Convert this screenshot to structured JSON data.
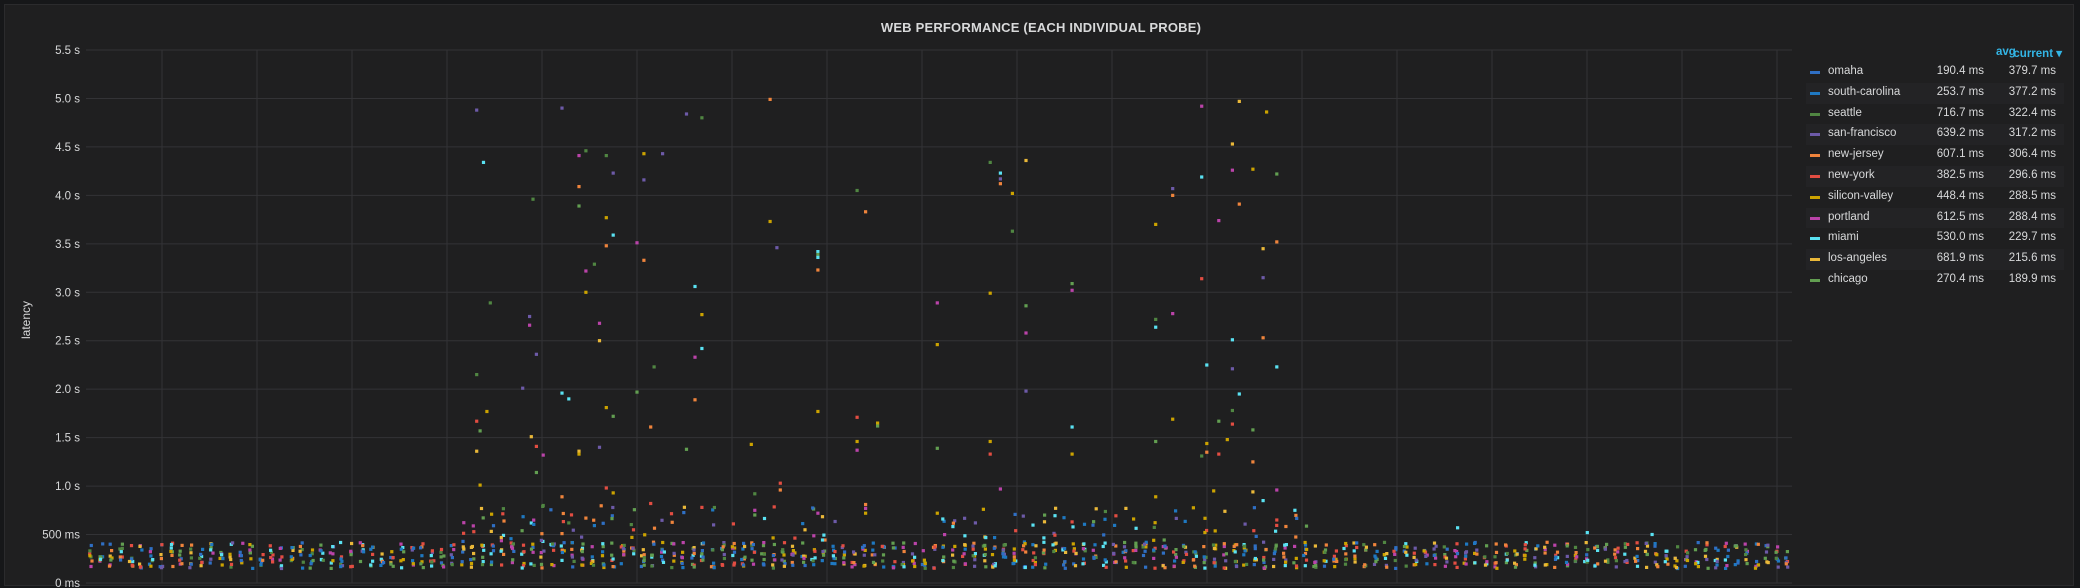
{
  "panel": {
    "title": "WEB PERFORMANCE (EACH INDIVIDUAL PROBE)"
  },
  "legend": {
    "avg_header": "avg",
    "current_header": "current ▾",
    "items": [
      {
        "name": "omaha",
        "avg": "190.4 ms",
        "current": "379.7 ms",
        "color": "#2f6fc4"
      },
      {
        "name": "south-carolina",
        "avg": "253.7 ms",
        "current": "377.2 ms",
        "color": "#1f78c1"
      },
      {
        "name": "seattle",
        "avg": "716.7 ms",
        "current": "322.4 ms",
        "color": "#508642"
      },
      {
        "name": "san-francisco",
        "avg": "639.2 ms",
        "current": "317.2 ms",
        "color": "#6d5aa8"
      },
      {
        "name": "new-jersey",
        "avg": "607.1 ms",
        "current": "306.4 ms",
        "color": "#ef843c"
      },
      {
        "name": "new-york",
        "avg": "382.5 ms",
        "current": "296.6 ms",
        "color": "#e24d42"
      },
      {
        "name": "silicon-valley",
        "avg": "448.4 ms",
        "current": "288.5 ms",
        "color": "#cca300"
      },
      {
        "name": "portland",
        "avg": "612.5 ms",
        "current": "288.4 ms",
        "color": "#ba43a9"
      },
      {
        "name": "miami",
        "avg": "530.0 ms",
        "current": "229.7 ms",
        "color": "#5ae2f2"
      },
      {
        "name": "los-angeles",
        "avg": "681.9 ms",
        "current": "215.6 ms",
        "color": "#eab839"
      },
      {
        "name": "chicago",
        "avg": "270.4 ms",
        "current": "189.9 ms",
        "color": "#629e51"
      }
    ]
  },
  "chart_data": {
    "type": "scatter",
    "title": "WEB PERFORMANCE (EACH INDIVIDUAL PROBE)",
    "ylabel": "latency",
    "xlabel": "",
    "yunit": "s",
    "ylim": [
      0,
      5.5
    ],
    "yticks": [
      "0 ms",
      "500 ms",
      "1.0 s",
      "1.5 s",
      "2.0 s",
      "2.5 s",
      "3.0 s",
      "3.5 s",
      "4.0 s",
      "4.5 s",
      "5.0 s",
      "5.5 s"
    ],
    "xlim": [
      0,
      1
    ],
    "grid": true,
    "legend_position": "right",
    "baseline_band_s": [
      0.15,
      0.42
    ],
    "spikes": [
      {
        "series": "san-francisco",
        "x": 0.229,
        "y": 4.88
      },
      {
        "series": "miami",
        "x": 0.233,
        "y": 4.34
      },
      {
        "series": "seattle",
        "x": 0.229,
        "y": 2.15
      },
      {
        "series": "new-york",
        "x": 0.229,
        "y": 1.67
      },
      {
        "series": "silicon-valley",
        "x": 0.231,
        "y": 1.01
      },
      {
        "series": "los-angeles",
        "x": 0.229,
        "y": 1.36
      },
      {
        "series": "chicago",
        "x": 0.231,
        "y": 1.57
      },
      {
        "series": "seattle",
        "x": 0.237,
        "y": 2.89
      },
      {
        "series": "silicon-valley",
        "x": 0.235,
        "y": 1.77
      },
      {
        "series": "san-francisco",
        "x": 0.256,
        "y": 2.01
      },
      {
        "series": "new-jersey",
        "x": 0.245,
        "y": 0.64
      },
      {
        "series": "seattle",
        "x": 0.262,
        "y": 3.96
      },
      {
        "series": "san-francisco",
        "x": 0.26,
        "y": 2.75
      },
      {
        "series": "portland",
        "x": 0.26,
        "y": 2.66
      },
      {
        "series": "san-francisco",
        "x": 0.264,
        "y": 2.36
      },
      {
        "series": "los-angeles",
        "x": 0.261,
        "y": 1.51
      },
      {
        "series": "new-york",
        "x": 0.264,
        "y": 1.41
      },
      {
        "series": "portland",
        "x": 0.268,
        "y": 1.32
      },
      {
        "series": "chicago",
        "x": 0.264,
        "y": 1.14
      },
      {
        "series": "seattle",
        "x": 0.268,
        "y": 0.8
      },
      {
        "series": "san-francisco",
        "x": 0.279,
        "y": 4.9
      },
      {
        "series": "miami",
        "x": 0.279,
        "y": 1.96
      },
      {
        "series": "miami",
        "x": 0.283,
        "y": 1.9
      },
      {
        "series": "new-jersey",
        "x": 0.279,
        "y": 0.89
      },
      {
        "series": "seattle",
        "x": 0.283,
        "y": 0.62
      },
      {
        "series": "portland",
        "x": 0.289,
        "y": 4.41
      },
      {
        "series": "new-jersey",
        "x": 0.289,
        "y": 4.09
      },
      {
        "series": "chicago",
        "x": 0.289,
        "y": 3.89
      },
      {
        "series": "seattle",
        "x": 0.293,
        "y": 4.46
      },
      {
        "series": "portland",
        "x": 0.293,
        "y": 3.22
      },
      {
        "series": "silicon-valley",
        "x": 0.293,
        "y": 3.0
      },
      {
        "series": "los-angeles",
        "x": 0.289,
        "y": 1.36
      },
      {
        "series": "silicon-valley",
        "x": 0.289,
        "y": 1.33
      },
      {
        "series": "seattle",
        "x": 0.298,
        "y": 3.29
      },
      {
        "series": "los-angeles",
        "x": 0.301,
        "y": 2.5
      },
      {
        "series": "portland",
        "x": 0.301,
        "y": 2.68
      },
      {
        "series": "san-francisco",
        "x": 0.301,
        "y": 1.4
      },
      {
        "series": "new-jersey",
        "x": 0.293,
        "y": 0.67
      },
      {
        "series": "seattle",
        "x": 0.305,
        "y": 4.41
      },
      {
        "series": "new-jersey",
        "x": 0.305,
        "y": 3.48
      },
      {
        "series": "silicon-valley",
        "x": 0.305,
        "y": 3.77
      },
      {
        "series": "miami",
        "x": 0.309,
        "y": 3.59
      },
      {
        "series": "san-francisco",
        "x": 0.309,
        "y": 4.23
      },
      {
        "series": "silicon-valley",
        "x": 0.305,
        "y": 1.81
      },
      {
        "series": "chicago",
        "x": 0.309,
        "y": 1.72
      },
      {
        "series": "new-york",
        "x": 0.305,
        "y": 0.98
      },
      {
        "series": "silicon-valley",
        "x": 0.309,
        "y": 0.93
      },
      {
        "series": "portland",
        "x": 0.323,
        "y": 3.51
      },
      {
        "series": "chicago",
        "x": 0.323,
        "y": 1.97
      },
      {
        "series": "silicon-valley",
        "x": 0.327,
        "y": 4.43
      },
      {
        "series": "san-francisco",
        "x": 0.327,
        "y": 4.16
      },
      {
        "series": "new-jersey",
        "x": 0.327,
        "y": 3.33
      },
      {
        "series": "seattle",
        "x": 0.333,
        "y": 2.23
      },
      {
        "series": "new-jersey",
        "x": 0.331,
        "y": 1.61
      },
      {
        "series": "new-york",
        "x": 0.331,
        "y": 0.82
      },
      {
        "series": "san-francisco",
        "x": 0.338,
        "y": 4.43
      },
      {
        "series": "san-francisco",
        "x": 0.352,
        "y": 4.84
      },
      {
        "series": "seattle",
        "x": 0.361,
        "y": 4.8
      },
      {
        "series": "miami",
        "x": 0.357,
        "y": 3.06
      },
      {
        "series": "silicon-valley",
        "x": 0.361,
        "y": 2.77
      },
      {
        "series": "miami",
        "x": 0.361,
        "y": 2.42
      },
      {
        "series": "portland",
        "x": 0.357,
        "y": 2.33
      },
      {
        "series": "new-jersey",
        "x": 0.357,
        "y": 1.89
      },
      {
        "series": "chicago",
        "x": 0.352,
        "y": 1.38
      },
      {
        "series": "new-york",
        "x": 0.361,
        "y": 0.78
      },
      {
        "series": "new-jersey",
        "x": 0.401,
        "y": 4.99
      },
      {
        "series": "silicon-valley",
        "x": 0.401,
        "y": 3.73
      },
      {
        "series": "san-francisco",
        "x": 0.405,
        "y": 3.46
      },
      {
        "series": "silicon-valley",
        "x": 0.39,
        "y": 1.43
      },
      {
        "series": "new-york",
        "x": 0.407,
        "y": 1.03
      },
      {
        "series": "new-jersey",
        "x": 0.407,
        "y": 0.96
      },
      {
        "series": "seattle",
        "x": 0.392,
        "y": 0.92
      },
      {
        "series": "portland",
        "x": 0.392,
        "y": 0.75
      },
      {
        "series": "miami",
        "x": 0.429,
        "y": 3.42
      },
      {
        "series": "chicago",
        "x": 0.429,
        "y": 3.39
      },
      {
        "series": "miami",
        "x": 0.429,
        "y": 3.36
      },
      {
        "series": "new-jersey",
        "x": 0.429,
        "y": 3.23
      },
      {
        "series": "silicon-valley",
        "x": 0.429,
        "y": 1.77
      },
      {
        "series": "portland",
        "x": 0.429,
        "y": 0.72
      },
      {
        "series": "seattle",
        "x": 0.452,
        "y": 4.05
      },
      {
        "series": "new-jersey",
        "x": 0.457,
        "y": 3.83
      },
      {
        "series": "new-york",
        "x": 0.452,
        "y": 1.71
      },
      {
        "series": "silicon-valley",
        "x": 0.464,
        "y": 1.65
      },
      {
        "series": "chicago",
        "x": 0.464,
        "y": 1.62
      },
      {
        "series": "silicon-valley",
        "x": 0.452,
        "y": 1.46
      },
      {
        "series": "portland",
        "x": 0.452,
        "y": 1.37
      },
      {
        "series": "new-jersey",
        "x": 0.457,
        "y": 0.81
      },
      {
        "series": "portland",
        "x": 0.457,
        "y": 0.77
      },
      {
        "series": "silicon-valley",
        "x": 0.457,
        "y": 0.72
      },
      {
        "series": "portland",
        "x": 0.499,
        "y": 2.89
      },
      {
        "series": "silicon-valley",
        "x": 0.499,
        "y": 2.46
      },
      {
        "series": "chicago",
        "x": 0.499,
        "y": 1.39
      },
      {
        "series": "silicon-valley",
        "x": 0.499,
        "y": 0.72
      },
      {
        "series": "seattle",
        "x": 0.53,
        "y": 4.34
      },
      {
        "series": "miami",
        "x": 0.536,
        "y": 4.23
      },
      {
        "series": "san-francisco",
        "x": 0.536,
        "y": 4.17
      },
      {
        "series": "new-jersey",
        "x": 0.536,
        "y": 4.12
      },
      {
        "series": "los-angeles",
        "x": 0.551,
        "y": 4.36
      },
      {
        "series": "silicon-valley",
        "x": 0.543,
        "y": 4.02
      },
      {
        "series": "seattle",
        "x": 0.543,
        "y": 3.63
      },
      {
        "series": "silicon-valley",
        "x": 0.53,
        "y": 2.99
      },
      {
        "series": "chicago",
        "x": 0.551,
        "y": 2.86
      },
      {
        "series": "portland",
        "x": 0.551,
        "y": 2.58
      },
      {
        "series": "san-francisco",
        "x": 0.551,
        "y": 1.98
      },
      {
        "series": "silicon-valley",
        "x": 0.53,
        "y": 1.46
      },
      {
        "series": "new-york",
        "x": 0.53,
        "y": 1.33
      },
      {
        "series": "portland",
        "x": 0.536,
        "y": 0.97
      },
      {
        "series": "silicon-valley",
        "x": 0.526,
        "y": 0.76
      },
      {
        "series": "chicago",
        "x": 0.578,
        "y": 3.09
      },
      {
        "series": "portland",
        "x": 0.578,
        "y": 3.02
      },
      {
        "series": "miami",
        "x": 0.578,
        "y": 1.61
      },
      {
        "series": "silicon-valley",
        "x": 0.578,
        "y": 1.33
      },
      {
        "series": "new-york",
        "x": 0.578,
        "y": 0.63
      },
      {
        "series": "silicon-valley",
        "x": 0.627,
        "y": 3.7
      },
      {
        "series": "new-jersey",
        "x": 0.637,
        "y": 4.0
      },
      {
        "series": "san-francisco",
        "x": 0.637,
        "y": 4.07
      },
      {
        "series": "seattle",
        "x": 0.627,
        "y": 2.72
      },
      {
        "series": "miami",
        "x": 0.627,
        "y": 2.64
      },
      {
        "series": "portland",
        "x": 0.637,
        "y": 2.78
      },
      {
        "series": "silicon-valley",
        "x": 0.637,
        "y": 1.69
      },
      {
        "series": "chicago",
        "x": 0.627,
        "y": 1.46
      },
      {
        "series": "silicon-valley",
        "x": 0.627,
        "y": 0.89
      },
      {
        "series": "portland",
        "x": 0.654,
        "y": 4.92
      },
      {
        "series": "new-york",
        "x": 0.654,
        "y": 3.14
      },
      {
        "series": "miami",
        "x": 0.654,
        "y": 4.19
      },
      {
        "series": "miami",
        "x": 0.657,
        "y": 2.25
      },
      {
        "series": "portland",
        "x": 0.664,
        "y": 3.74
      },
      {
        "series": "silicon-valley",
        "x": 0.657,
        "y": 1.44
      },
      {
        "series": "new-jersey",
        "x": 0.657,
        "y": 1.35
      },
      {
        "series": "seattle",
        "x": 0.654,
        "y": 1.31
      },
      {
        "series": "silicon-valley",
        "x": 0.661,
        "y": 0.95
      },
      {
        "series": "new-york",
        "x": 0.664,
        "y": 1.33
      },
      {
        "series": "chicago",
        "x": 0.664,
        "y": 1.67
      },
      {
        "series": "silicon-valley",
        "x": 0.669,
        "y": 1.48
      },
      {
        "series": "los-angeles",
        "x": 0.672,
        "y": 4.53
      },
      {
        "series": "portland",
        "x": 0.672,
        "y": 4.26
      },
      {
        "series": "miami",
        "x": 0.672,
        "y": 2.51
      },
      {
        "series": "san-francisco",
        "x": 0.672,
        "y": 2.21
      },
      {
        "series": "seattle",
        "x": 0.672,
        "y": 1.78
      },
      {
        "series": "new-york",
        "x": 0.672,
        "y": 1.64
      },
      {
        "series": "los-angeles",
        "x": 0.676,
        "y": 4.97
      },
      {
        "series": "new-jersey",
        "x": 0.676,
        "y": 3.91
      },
      {
        "series": "miami",
        "x": 0.676,
        "y": 1.95
      },
      {
        "series": "silicon-valley",
        "x": 0.684,
        "y": 4.27
      },
      {
        "series": "chicago",
        "x": 0.684,
        "y": 1.58
      },
      {
        "series": "new-jersey",
        "x": 0.684,
        "y": 1.25
      },
      {
        "series": "los-angeles",
        "x": 0.684,
        "y": 0.94
      },
      {
        "series": "silicon-valley",
        "x": 0.692,
        "y": 4.86
      },
      {
        "series": "los-angeles",
        "x": 0.69,
        "y": 3.45
      },
      {
        "series": "san-francisco",
        "x": 0.69,
        "y": 3.15
      },
      {
        "series": "new-jersey",
        "x": 0.69,
        "y": 2.53
      },
      {
        "series": "miami",
        "x": 0.69,
        "y": 0.85
      },
      {
        "series": "new-jersey",
        "x": 0.698,
        "y": 3.52
      },
      {
        "series": "chicago",
        "x": 0.698,
        "y": 4.22
      },
      {
        "series": "miami",
        "x": 0.698,
        "y": 2.23
      },
      {
        "series": "portland",
        "x": 0.698,
        "y": 0.96
      },
      {
        "series": "new-york",
        "x": 0.698,
        "y": 0.65
      },
      {
        "series": "miami",
        "x": 0.804,
        "y": 0.57
      },
      {
        "series": "miami",
        "x": 0.918,
        "y": 0.5
      },
      {
        "series": "miami",
        "x": 0.88,
        "y": 0.52
      }
    ]
  }
}
